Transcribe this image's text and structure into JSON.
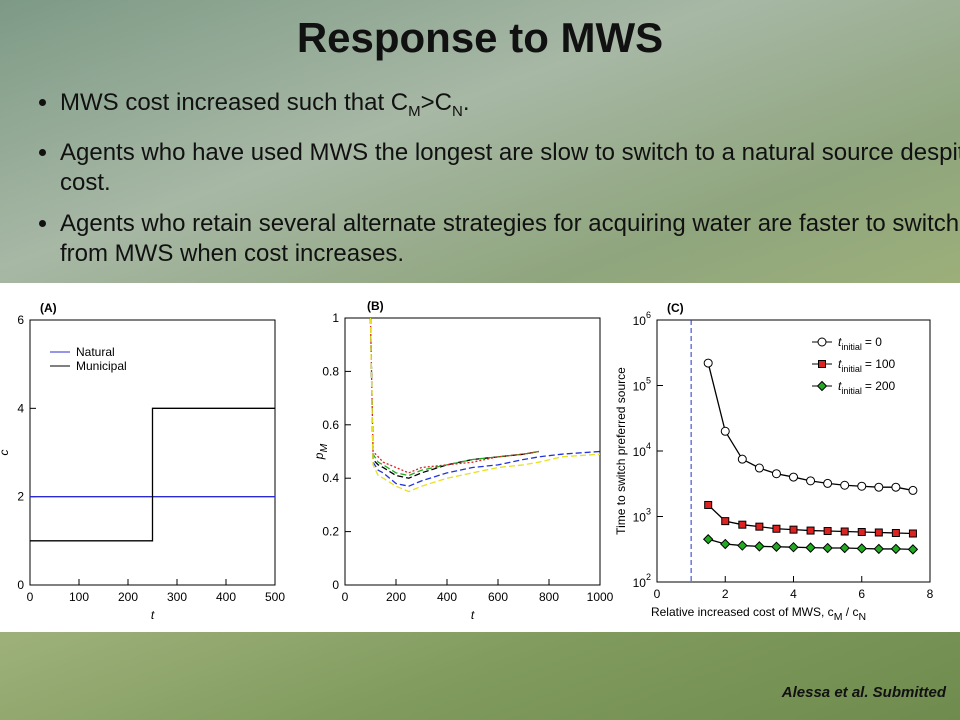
{
  "title": "Response to MWS",
  "bullets": [
    [
      "MWS cost increased such that C",
      "M",
      ">C",
      "N",
      "."
    ],
    [
      "Agents who have used MWS the longest are slow to switch to a natural source despite cost."
    ],
    [
      "Agents who retain several alternate strategies for acquiring water are faster to switch from MWS when cost increases."
    ]
  ],
  "citation": "Alessa et al. Submitted",
  "chart_data": [
    {
      "type": "line",
      "panel": "(A)",
      "xlabel": "t",
      "ylabel": "c",
      "x": [
        0,
        250,
        250,
        500
      ],
      "series": [
        {
          "name": "Natural",
          "color": "#2b2bd6",
          "values": [
            2,
            2,
            2,
            2
          ]
        },
        {
          "name": "Municipal",
          "color": "#000000",
          "values": [
            1,
            1,
            4,
            4
          ]
        }
      ],
      "xlim": [
        0,
        500
      ],
      "xticks": [
        0,
        100,
        200,
        300,
        400,
        500
      ],
      "ylim": [
        0,
        6
      ],
      "yticks": [
        0,
        2,
        4,
        6
      ],
      "legend": "upper left"
    },
    {
      "type": "line",
      "panel": "(B)",
      "xlabel": "t",
      "ylabel": [
        "p",
        "M"
      ],
      "x": [
        100,
        110,
        130,
        150,
        200,
        250,
        300,
        400,
        500,
        600,
        700,
        760,
        850,
        1000
      ],
      "series": [
        {
          "color": "#000000",
          "linestyle": "dashed",
          "values": [
            1,
            0.47,
            0.45,
            0.44,
            0.41,
            0.4,
            0.42,
            0.45,
            0.47,
            0.48,
            0.49,
            0.5,
            null,
            null
          ]
        },
        {
          "color": "#2233dd",
          "linestyle": "dashed",
          "values": [
            1,
            0.46,
            0.43,
            0.42,
            0.38,
            0.37,
            0.39,
            0.42,
            0.44,
            0.45,
            0.47,
            0.48,
            0.49,
            0.5
          ]
        },
        {
          "color": "#22aa22",
          "linestyle": "dashed",
          "values": [
            1,
            0.49,
            0.46,
            0.45,
            0.42,
            0.41,
            0.43,
            0.45,
            0.47,
            0.48,
            0.49,
            0.5,
            null,
            null
          ]
        },
        {
          "color": "#dd2222",
          "linestyle": "dotted",
          "values": [
            1,
            0.5,
            0.48,
            0.46,
            0.44,
            0.42,
            0.44,
            0.45,
            0.46,
            0.48,
            0.49,
            0.5,
            null,
            null
          ]
        },
        {
          "color": "#e8e020",
          "linestyle": "dashed",
          "values": [
            1,
            0.45,
            0.41,
            0.4,
            0.37,
            0.35,
            0.37,
            0.4,
            0.42,
            0.44,
            0.45,
            0.46,
            0.48,
            0.49
          ]
        }
      ],
      "xlim": [
        0,
        1000
      ],
      "xticks": [
        0,
        200,
        400,
        600,
        800,
        1000
      ],
      "ylim": [
        0,
        1
      ],
      "yticks": [
        0,
        0.2,
        0.4,
        0.6,
        0.8,
        1
      ]
    },
    {
      "type": "scatter-line",
      "panel": "(C)",
      "xlabel": [
        "Relative increased cost of MWS, c",
        "M",
        " / c",
        "N"
      ],
      "ylabel": "Time to switch preferred source",
      "log_y": true,
      "line_color": "#000000",
      "vline": 1,
      "vline_color": "#2233cc",
      "x": [
        1.5,
        2,
        2.5,
        3,
        3.5,
        4,
        4.5,
        5,
        5.5,
        6,
        6.5,
        7,
        7.5
      ],
      "series": [
        {
          "name": [
            "t",
            "initial",
            "= 0"
          ],
          "marker": "circle",
          "color": "#ffffff",
          "values": [
            220000,
            20000,
            7500,
            5500,
            4500,
            4000,
            3500,
            3200,
            3000,
            2900,
            2800,
            2800,
            2500
          ]
        },
        {
          "name": [
            "t",
            "initial",
            "= 100"
          ],
          "marker": "square",
          "color": "#dd2222",
          "values": [
            1500,
            850,
            750,
            700,
            650,
            630,
            610,
            600,
            590,
            580,
            570,
            560,
            550
          ]
        },
        {
          "name": [
            "t",
            "initial",
            "= 200"
          ],
          "marker": "diamond",
          "color": "#22aa22",
          "values": [
            450,
            380,
            360,
            350,
            345,
            340,
            335,
            330,
            330,
            325,
            320,
            320,
            315
          ]
        }
      ],
      "xlim": [
        0,
        8
      ],
      "xticks": [
        0,
        2,
        4,
        6,
        8
      ],
      "ylim": [
        100,
        1000000
      ],
      "yticks": [
        {
          "value": 100,
          "label": "10",
          "sup": "2"
        },
        {
          "value": 1000,
          "label": "10",
          "sup": "3"
        },
        {
          "value": 10000,
          "label": "10",
          "sup": "4"
        },
        {
          "value": 100000,
          "label": "10",
          "sup": "5"
        },
        {
          "value": 1000000,
          "label": "10",
          "sup": "6"
        }
      ],
      "legend": "upper right"
    }
  ]
}
